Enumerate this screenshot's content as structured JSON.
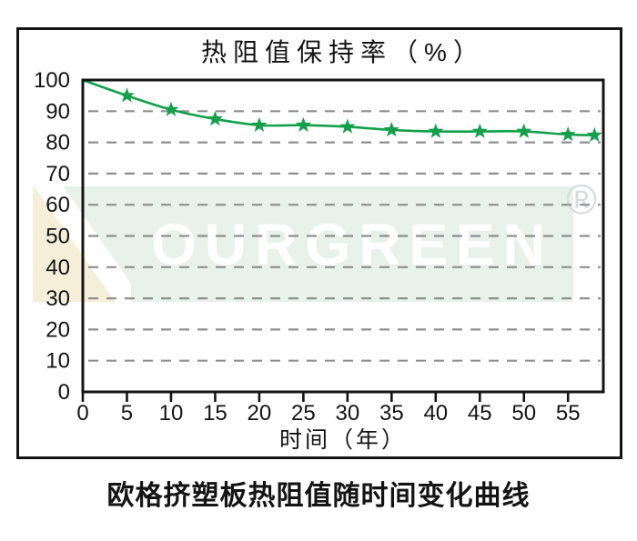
{
  "page": {
    "caption": "欧格挤塑板热阻值随时间变化曲线"
  },
  "watermark": {
    "brand": "OURGREEN",
    "registered_mark": "®"
  },
  "chart_data": {
    "type": "line",
    "title": "热阻值保持率（%）",
    "xlabel": "时间（年）",
    "ylabel": "",
    "series_name": "热阻值保持率",
    "x": [
      0,
      5,
      10,
      15,
      20,
      25,
      30,
      35,
      40,
      45,
      50,
      55,
      58
    ],
    "values": [
      100,
      95,
      90.5,
      87.5,
      85.5,
      85.5,
      85,
      84,
      83.5,
      83.5,
      83.5,
      82.5,
      82.3
    ],
    "xticks": [
      0,
      5,
      10,
      15,
      20,
      25,
      30,
      35,
      40,
      45,
      50,
      55
    ],
    "yticks": [
      0,
      10,
      20,
      30,
      40,
      50,
      60,
      70,
      80,
      90,
      100
    ],
    "xlim": [
      0,
      59
    ],
    "ylim": [
      0,
      100
    ],
    "grid": "horizontal-dashed",
    "legend": "none",
    "marker": "star",
    "line_color": "#14a04b",
    "grid_color": "#8f8f8f",
    "axis_color": "#141414"
  }
}
